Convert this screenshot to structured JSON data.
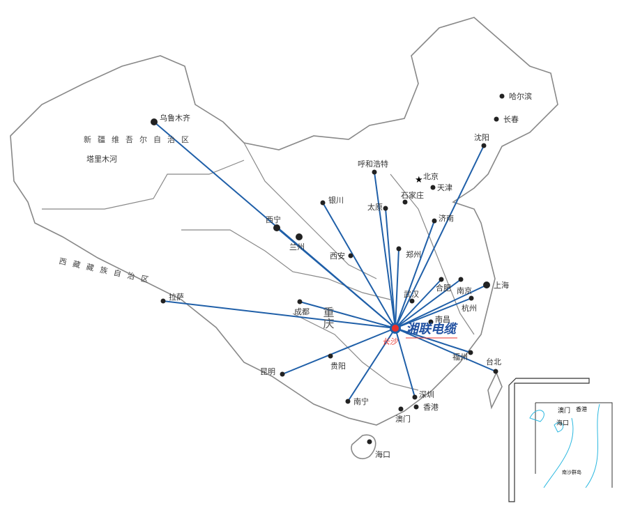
{
  "hub": {
    "name": "长沙",
    "brand": "湘联电缆",
    "line_color": "#1f5fa8",
    "marker_color": "#e8302a"
  },
  "regions": {
    "xinjiang": "新疆维吾尔自治区",
    "tarim": "塔里木河",
    "tibet": "西藏藏族自治区",
    "chongqing": "重庆"
  },
  "cities": [
    {
      "name": "乌鲁木齐",
      "connected": true
    },
    {
      "name": "拉萨",
      "connected": true
    },
    {
      "name": "西宁",
      "connected": true
    },
    {
      "name": "兰州",
      "connected": false
    },
    {
      "name": "银川",
      "connected": true
    },
    {
      "name": "呼和浩特",
      "connected": true
    },
    {
      "name": "太原",
      "connected": true
    },
    {
      "name": "石家庄",
      "connected": false
    },
    {
      "name": "北京",
      "connected": false,
      "capital": true
    },
    {
      "name": "天津",
      "connected": false
    },
    {
      "name": "沈阳",
      "connected": true
    },
    {
      "name": "哈尔滨",
      "connected": false
    },
    {
      "name": "长春",
      "connected": false
    },
    {
      "name": "济南",
      "connected": true
    },
    {
      "name": "郑州",
      "connected": true
    },
    {
      "name": "西安",
      "connected": false
    },
    {
      "name": "成都",
      "connected": true
    },
    {
      "name": "武汉",
      "connected": false
    },
    {
      "name": "合肥",
      "connected": true
    },
    {
      "name": "南京",
      "connected": true
    },
    {
      "name": "上海",
      "connected": true
    },
    {
      "name": "杭州",
      "connected": true
    },
    {
      "name": "南昌",
      "connected": false
    },
    {
      "name": "福州",
      "connected": true
    },
    {
      "name": "台北",
      "connected": true
    },
    {
      "name": "深圳",
      "connected": true
    },
    {
      "name": "香港",
      "connected": false
    },
    {
      "name": "澳门",
      "connected": false
    },
    {
      "name": "南宁",
      "connected": true
    },
    {
      "name": "贵阳",
      "connected": false
    },
    {
      "name": "昆明",
      "connected": true
    },
    {
      "name": "海口",
      "connected": false
    }
  ],
  "inset": {
    "labels": [
      "澳门",
      "香港",
      "海口",
      "南沙群岛"
    ]
  }
}
